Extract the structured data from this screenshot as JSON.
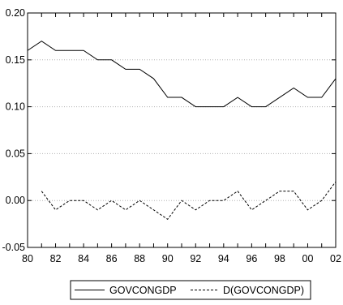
{
  "chart_data": {
    "type": "line",
    "title": "",
    "xlabel": "",
    "ylabel": "",
    "x": [
      1980,
      1981,
      1982,
      1983,
      1984,
      1985,
      1986,
      1987,
      1988,
      1989,
      1990,
      1991,
      1992,
      1993,
      1994,
      1995,
      1996,
      1997,
      1998,
      1999,
      2000,
      2001,
      2002
    ],
    "x_ticks": [
      {
        "value": 1980,
        "label": "80"
      },
      {
        "value": 1982,
        "label": "82"
      },
      {
        "value": 1984,
        "label": "84"
      },
      {
        "value": 1986,
        "label": "86"
      },
      {
        "value": 1988,
        "label": "88"
      },
      {
        "value": 1990,
        "label": "90"
      },
      {
        "value": 1992,
        "label": "92"
      },
      {
        "value": 1994,
        "label": "94"
      },
      {
        "value": 1996,
        "label": "96"
      },
      {
        "value": 1998,
        "label": "98"
      },
      {
        "value": 2000,
        "label": "00"
      },
      {
        "value": 2002,
        "label": "02"
      }
    ],
    "xlim": [
      1980,
      2002
    ],
    "ylim": [
      -0.05,
      0.2
    ],
    "y_ticks": [
      {
        "value": 0.2,
        "label": "0.20"
      },
      {
        "value": 0.15,
        "label": "0.15"
      },
      {
        "value": 0.1,
        "label": "0.10"
      },
      {
        "value": 0.05,
        "label": "0.05"
      },
      {
        "value": 0.0,
        "label": "0.00"
      },
      {
        "value": -0.05,
        "label": "-0.05"
      }
    ],
    "grid": "horizontal dotted",
    "legend_position": "bottom-center",
    "series": [
      {
        "name": "GOVCONGDP",
        "style": "solid",
        "color": "#000000",
        "values": [
          0.16,
          0.17,
          0.16,
          0.16,
          0.16,
          0.15,
          0.15,
          0.14,
          0.14,
          0.13,
          0.11,
          0.11,
          0.1,
          0.1,
          0.1,
          0.11,
          0.1,
          0.1,
          0.11,
          0.12,
          0.11,
          0.11,
          0.13
        ]
      },
      {
        "name": "D(GOVCONGDP)",
        "style": "dashed",
        "color": "#000000",
        "values": [
          null,
          0.01,
          -0.01,
          0.0,
          0.0,
          -0.01,
          0.0,
          -0.01,
          0.0,
          -0.01,
          -0.02,
          0.0,
          -0.01,
          0.0,
          0.0,
          0.01,
          -0.01,
          0.0,
          0.01,
          0.01,
          -0.01,
          0.0,
          0.02
        ]
      }
    ]
  }
}
